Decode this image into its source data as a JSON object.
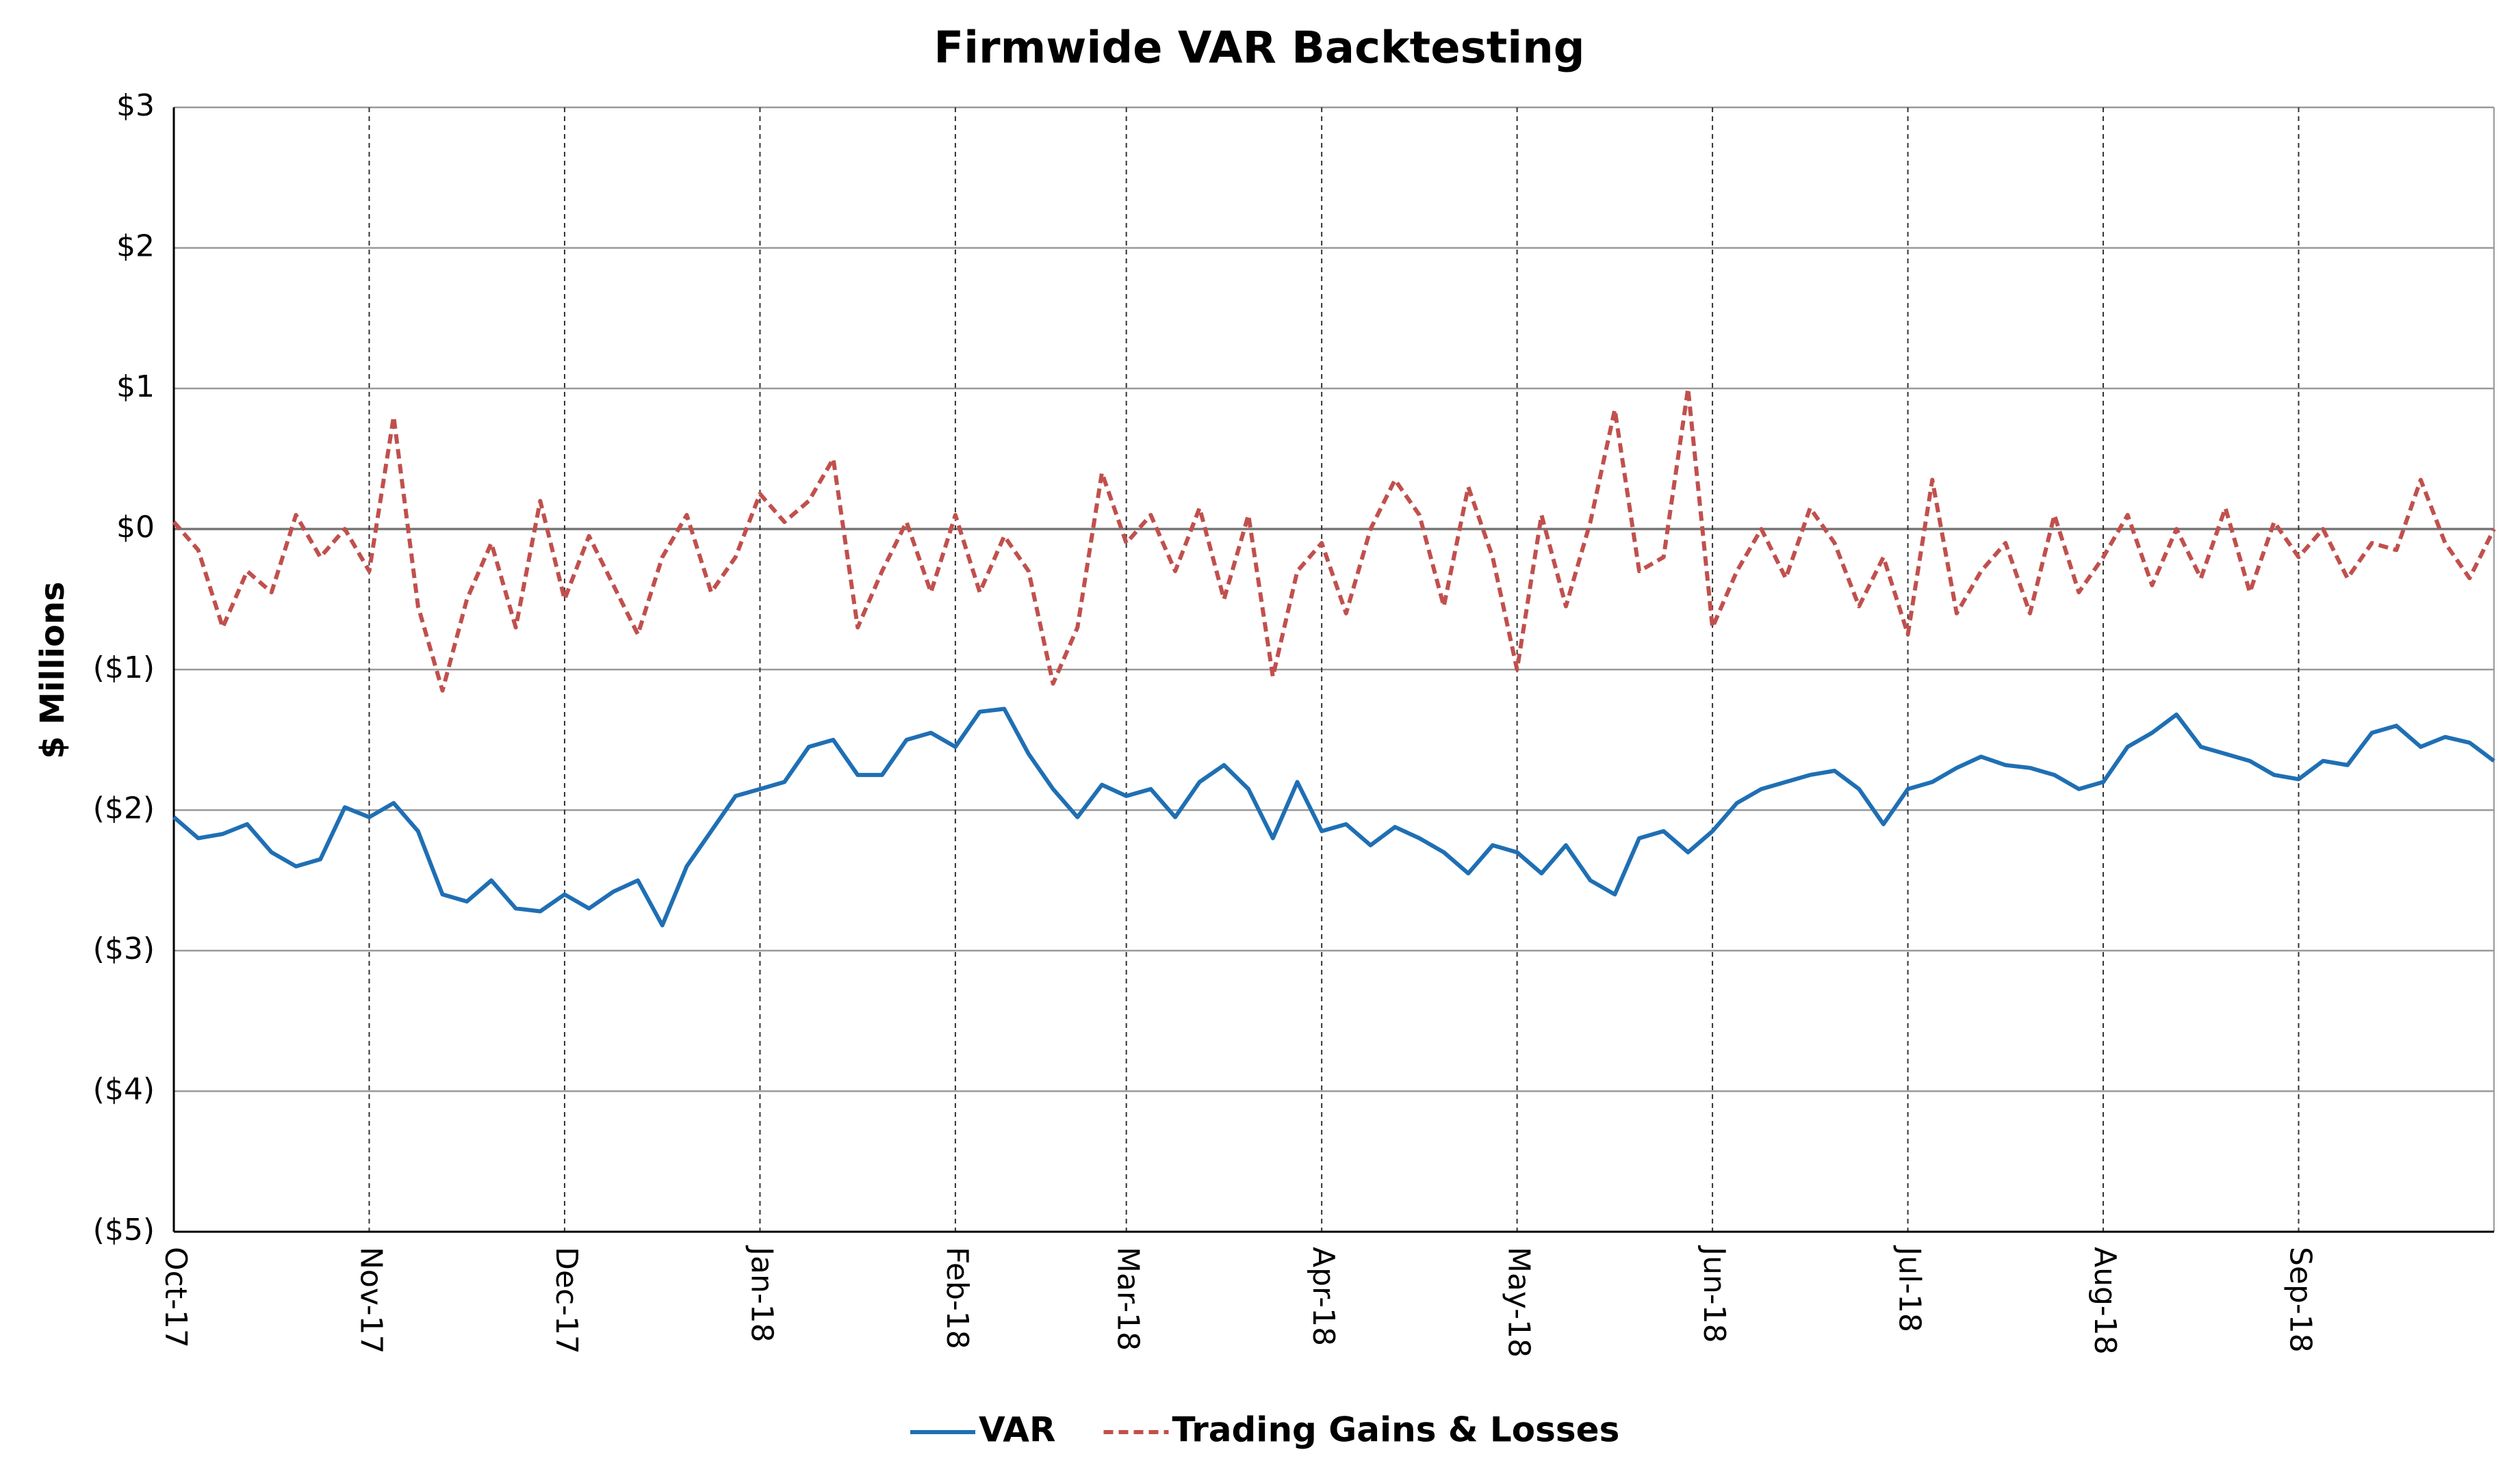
{
  "chart_data": {
    "type": "line",
    "title": "Firmwide VAR Backtesting",
    "y_label": "$ Millions",
    "categories": [
      "Oct-17",
      null,
      null,
      null,
      null,
      null,
      null,
      null,
      "Nov-17",
      null,
      null,
      null,
      null,
      null,
      null,
      null,
      "Dec-17",
      null,
      null,
      null,
      null,
      null,
      null,
      null,
      "Jan-18",
      null,
      null,
      null,
      null,
      null,
      null,
      null,
      "Feb-18",
      null,
      null,
      null,
      null,
      null,
      null,
      "Mar-18",
      null,
      null,
      null,
      null,
      null,
      null,
      null,
      "Apr-18",
      null,
      null,
      null,
      null,
      null,
      null,
      null,
      "May-18",
      null,
      null,
      null,
      null,
      null,
      null,
      null,
      "Jun-18",
      null,
      null,
      null,
      null,
      null,
      null,
      null,
      "Jul-18",
      null,
      null,
      null,
      null,
      null,
      null,
      null,
      "Aug-18",
      null,
      null,
      null,
      null,
      null,
      null,
      null,
      "Sep-18",
      null,
      null,
      null,
      null,
      null,
      null,
      null,
      null
    ],
    "series": [
      {
        "name": "VAR",
        "color": "#1f6fb4",
        "dash": false,
        "values": [
          -2.05,
          -2.2,
          -2.17,
          -2.1,
          -2.3,
          -2.4,
          -2.35,
          -1.98,
          -2.05,
          -1.95,
          -2.15,
          -2.6,
          -2.65,
          -2.5,
          -2.7,
          -2.72,
          -2.6,
          -2.7,
          -2.58,
          -2.5,
          -2.82,
          -2.4,
          -2.15,
          -1.9,
          -1.85,
          -1.8,
          -1.55,
          -1.5,
          -1.75,
          -1.75,
          -1.5,
          -1.45,
          -1.55,
          -1.3,
          -1.28,
          -1.6,
          -1.85,
          -2.05,
          -1.82,
          -1.9,
          -1.85,
          -2.05,
          -1.8,
          -1.68,
          -1.85,
          -2.2,
          -1.8,
          -2.15,
          -2.1,
          -2.25,
          -2.12,
          -2.2,
          -2.3,
          -2.45,
          -2.25,
          -2.3,
          -2.45,
          -2.25,
          -2.5,
          -2.6,
          -2.2,
          -2.15,
          -2.3,
          -2.15,
          -1.95,
          -1.85,
          -1.8,
          -1.75,
          -1.72,
          -1.85,
          -2.1,
          -1.85,
          -1.8,
          -1.7,
          -1.62,
          -1.68,
          -1.7,
          -1.75,
          -1.85,
          -1.8,
          -1.55,
          -1.45,
          -1.32,
          -1.55,
          -1.6,
          -1.65,
          -1.75,
          -1.78,
          -1.65,
          -1.68,
          -1.45,
          -1.4,
          -1.55,
          -1.48,
          -1.52,
          -1.65
        ]
      },
      {
        "name": "Trading Gains & Losses",
        "color": "#c0504d",
        "dash": true,
        "values": [
          0.05,
          -0.15,
          -0.7,
          -0.3,
          -0.45,
          0.1,
          -0.2,
          0.0,
          -0.3,
          0.8,
          -0.55,
          -1.15,
          -0.5,
          -0.1,
          -0.7,
          0.2,
          -0.5,
          -0.05,
          -0.4,
          -0.75,
          -0.2,
          0.1,
          -0.45,
          -0.2,
          0.25,
          0.05,
          0.2,
          0.5,
          -0.7,
          -0.3,
          0.05,
          -0.45,
          0.1,
          -0.45,
          -0.05,
          -0.3,
          -1.1,
          -0.7,
          0.4,
          -0.1,
          0.1,
          -0.3,
          0.15,
          -0.5,
          0.1,
          -1.05,
          -0.3,
          -0.1,
          -0.6,
          0.0,
          0.35,
          0.1,
          -0.55,
          0.3,
          -0.2,
          -1.0,
          0.1,
          -0.55,
          0.05,
          0.85,
          -0.3,
          -0.2,
          1.0,
          -0.7,
          -0.3,
          0.0,
          -0.35,
          0.15,
          -0.1,
          -0.55,
          -0.2,
          -0.75,
          0.35,
          -0.6,
          -0.3,
          -0.1,
          -0.6,
          0.1,
          -0.45,
          -0.2,
          0.1,
          -0.4,
          0.0,
          -0.35,
          0.15,
          -0.45,
          0.05,
          -0.2,
          0.0,
          -0.35,
          -0.1,
          -0.15,
          0.35,
          -0.1,
          -0.35,
          0.0
        ]
      }
    ],
    "ylim": [
      -5,
      3
    ],
    "yticks": [
      {
        "value": -5,
        "label": "($5)"
      },
      {
        "value": -4,
        "label": "($4)"
      },
      {
        "value": -3,
        "label": "($3)"
      },
      {
        "value": -2,
        "label": "($2)"
      },
      {
        "value": -1,
        "label": "($1)"
      },
      {
        "value": 0,
        "label": "$0"
      },
      {
        "value": 1,
        "label": "$1"
      },
      {
        "value": 2,
        "label": "$2"
      },
      {
        "value": 3,
        "label": "$3"
      }
    ],
    "grid": true,
    "legend": "bottom"
  }
}
